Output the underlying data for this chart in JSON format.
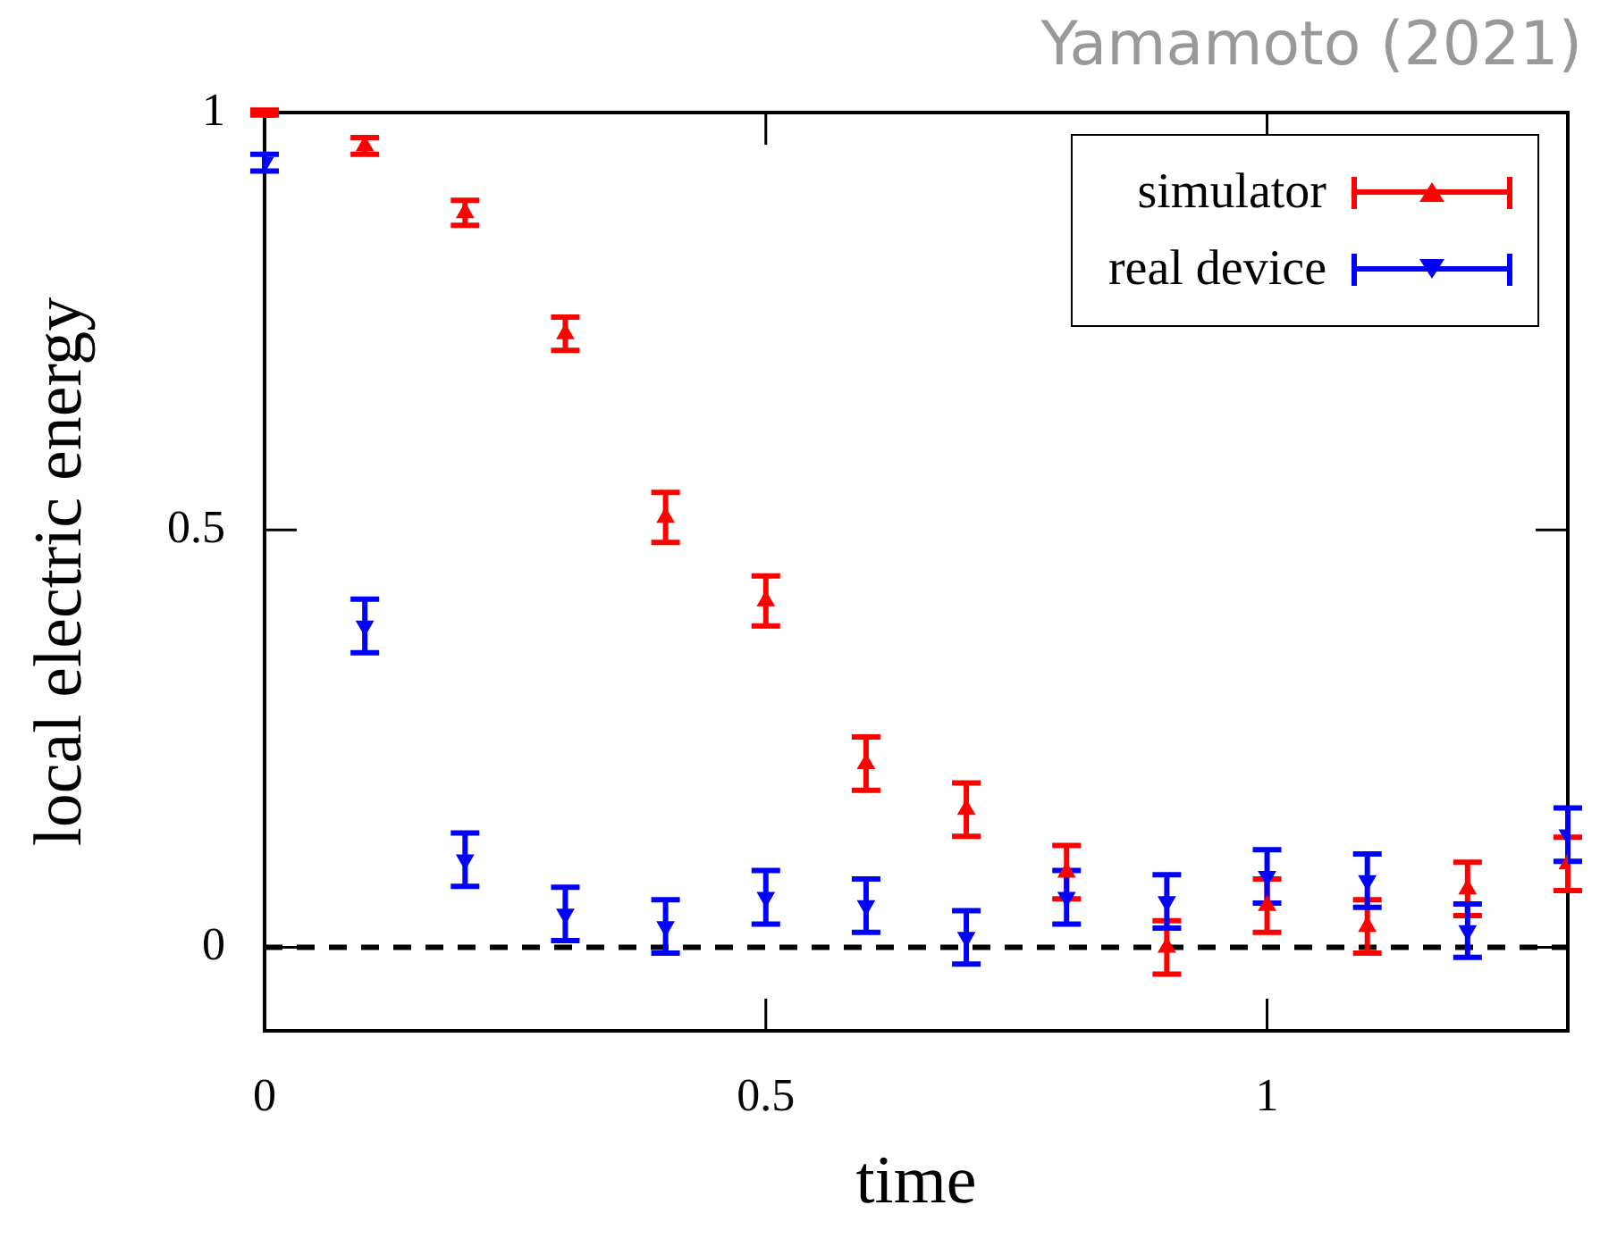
{
  "chart_data": {
    "type": "scatter",
    "xlabel": "time",
    "ylabel": "local electric energy",
    "annotations": [
      "Yamamoto (2021)"
    ],
    "xlim": [
      0,
      1.3
    ],
    "xticks": [
      0,
      0.5,
      1
    ],
    "ylim": [
      -0.1,
      1
    ],
    "yticks": [
      0,
      0.5,
      1
    ],
    "grid": false,
    "legend": "top right",
    "x": [
      0,
      0.1,
      0.2,
      0.3,
      0.4,
      0.5,
      0.6,
      0.7,
      0.8,
      0.9,
      1.0,
      1.1,
      1.2,
      1.3
    ],
    "ref_lines": [
      {
        "axis": "y",
        "value": 0,
        "label": null,
        "color": "#000000",
        "line_style": "dashed"
      }
    ],
    "series": [
      {
        "name": "simulator",
        "color": "#ff0000",
        "marker": "triangle",
        "values": [
          1.0,
          0.96,
          0.88,
          0.735,
          0.515,
          0.415,
          0.22,
          0.165,
          0.09,
          0.0,
          0.05,
          0.025,
          0.07,
          0.1
        ],
        "errors": [
          0.003,
          0.01,
          0.015,
          0.02,
          0.03,
          0.03,
          0.032,
          0.032,
          0.032,
          0.032,
          0.032,
          0.032,
          0.032,
          0.032
        ]
      },
      {
        "name": "real device",
        "color": "#0000ff",
        "marker": "triangle",
        "values": [
          0.94,
          0.385,
          0.105,
          0.04,
          0.025,
          0.06,
          0.05,
          0.012,
          0.06,
          0.055,
          0.085,
          0.08,
          0.02,
          0.135
        ],
        "errors": [
          0.01,
          0.032,
          0.032,
          0.032,
          0.032,
          0.032,
          0.032,
          0.032,
          0.032,
          0.032,
          0.032,
          0.032,
          0.032,
          0.032
        ]
      }
    ]
  }
}
